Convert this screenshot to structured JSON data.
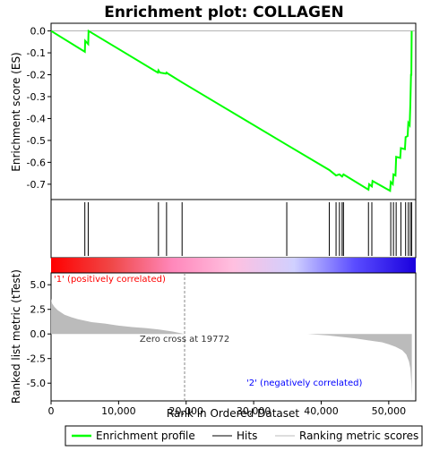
{
  "chart_data": {
    "type": "line",
    "title": "Enrichment plot: COLLAGEN",
    "top_panel": {
      "ylabel": "Enrichment score (ES)",
      "ylim": [
        -0.77,
        0.035
      ],
      "yticks": [
        0.0,
        -0.1,
        -0.2,
        -0.3,
        -0.4,
        -0.5,
        -0.6,
        -0.7
      ],
      "ytick_labels": [
        "0.0",
        "-0.1",
        "-0.2",
        "-0.3",
        "-0.4",
        "-0.5",
        "-0.6",
        "-0.7"
      ],
      "series": [
        {
          "name": "Enrichment profile",
          "color": "#00ff00",
          "x": [
            0,
            5000,
            5050,
            5500,
            5550,
            15800,
            15900,
            16100,
            17000,
            17100,
            17300,
            19400,
            34900,
            41200,
            42200,
            42700,
            43100,
            43300,
            47000,
            47100,
            47500,
            47600,
            50200,
            50300,
            50600,
            50700,
            51000,
            51100,
            51700,
            51800,
            52400,
            52500,
            52800,
            52900,
            53100,
            53200,
            53300,
            53350,
            53400
          ],
          "y": [
            0.0,
            -0.095,
            -0.045,
            -0.06,
            0.0,
            -0.19,
            -0.18,
            -0.19,
            -0.195,
            -0.19,
            -0.195,
            -0.235,
            -0.52,
            -0.635,
            -0.66,
            -0.655,
            -0.665,
            -0.655,
            -0.725,
            -0.7,
            -0.71,
            -0.685,
            -0.73,
            -0.69,
            -0.7,
            -0.655,
            -0.66,
            -0.575,
            -0.58,
            -0.535,
            -0.54,
            -0.485,
            -0.48,
            -0.42,
            -0.43,
            -0.335,
            -0.2,
            -0.2,
            0.0
          ]
        }
      ]
    },
    "hits": [
      5000,
      5500,
      15900,
      17100,
      19400,
      34900,
      41200,
      42200,
      42700,
      43100,
      43300,
      47000,
      47500,
      50300,
      50700,
      51100,
      51800,
      52500,
      52900,
      53200,
      53400
    ],
    "hits_label": "Hits",
    "color_bar": {
      "stops": [
        "#ff0000",
        "#f04848",
        "#ff88bb",
        "#ffc0e0",
        "#d0d0ff",
        "#5a4cff",
        "#1a00dd"
      ]
    },
    "bottom_panel": {
      "ylabel": "Ranked list metric (tTest)",
      "xlabel": "Rank in Ordered Dataset",
      "ylim": [
        -6.8,
        6.2
      ],
      "yticks": [
        5.0,
        2.5,
        0.0,
        -2.5,
        -5.0
      ],
      "ytick_labels": [
        "5.0",
        "2.5",
        "0.0",
        "-2.5",
        "-5.0"
      ],
      "xlim": [
        0,
        54000
      ],
      "xticks": [
        0,
        10000,
        20000,
        30000,
        40000,
        50000
      ],
      "xtick_labels": [
        "0",
        "10,000",
        "20,000",
        "30,000",
        "40,000",
        "50,000"
      ],
      "metric_x": [
        0,
        150,
        500,
        1000,
        2000,
        3000,
        4000,
        5000,
        6000,
        8000,
        10000,
        12000,
        14000,
        16000,
        18000,
        19772,
        22000,
        30000,
        38000,
        41000,
        43000,
        45000,
        47000,
        49000,
        50000,
        51000,
        52000,
        52600,
        53000,
        53200,
        53350,
        53420
      ],
      "metric_y": [
        3.6,
        3.1,
        2.75,
        2.4,
        1.95,
        1.7,
        1.5,
        1.35,
        1.2,
        1.05,
        0.85,
        0.7,
        0.6,
        0.45,
        0.25,
        0.0,
        0.0,
        0.0,
        0.0,
        -0.15,
        -0.3,
        -0.45,
        -0.65,
        -0.85,
        -1.05,
        -1.3,
        -1.65,
        -2.1,
        -2.8,
        -3.5,
        -5.0,
        -6.3
      ],
      "zero_cross_label": "Zero cross at 19772",
      "zero_cross_x": 19772,
      "pos_label": "'1' (positively correlated)",
      "neg_label": "'2' (negatively correlated)",
      "pos_color": "#ff0000",
      "neg_color": "#0000ff",
      "metric_color": "#bbbbbb"
    },
    "legend": [
      {
        "label": "Enrichment profile",
        "color": "#00ff00",
        "kind": "thick"
      },
      {
        "label": "Hits",
        "color": "#000000",
        "kind": "line"
      },
      {
        "label": "Ranking metric scores",
        "color": "#bbbbbb",
        "kind": "thin"
      }
    ]
  }
}
